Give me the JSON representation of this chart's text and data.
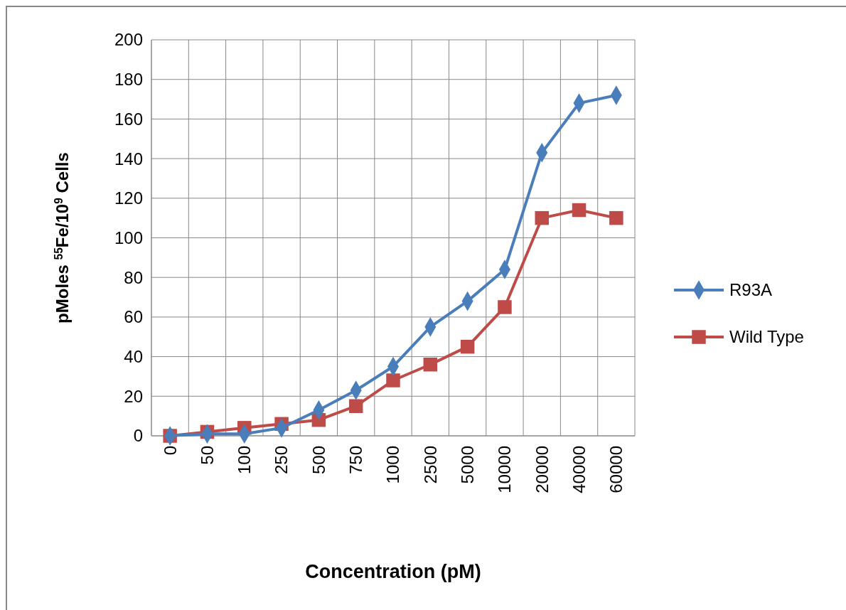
{
  "chart_data": {
    "type": "line",
    "xlabel": "Concentration (pM)",
    "ylabel": "pMoles $^{55}$Fe/10$^{9}$ Cells",
    "categories": [
      "0",
      "50",
      "100",
      "250",
      "500",
      "750",
      "1000",
      "2500",
      "5000",
      "10000",
      "20000",
      "40000",
      "60000"
    ],
    "series": [
      {
        "name": "R93A",
        "color": "#4a7ebb",
        "marker": "diamond",
        "values": [
          0,
          1,
          1,
          4,
          13,
          23,
          35,
          55,
          68,
          84,
          143,
          168,
          172
        ]
      },
      {
        "name": "Wild Type",
        "color": "#be4b48",
        "marker": "square",
        "values": [
          0,
          2,
          4,
          6,
          8,
          15,
          28,
          36,
          45,
          65,
          110,
          114,
          110
        ]
      }
    ],
    "ylim": [
      0,
      200
    ],
    "yticks": [
      0,
      20,
      40,
      60,
      80,
      100,
      120,
      140,
      160,
      180,
      200
    ],
    "grid": true,
    "legend": "right",
    "line_style": "solid"
  }
}
